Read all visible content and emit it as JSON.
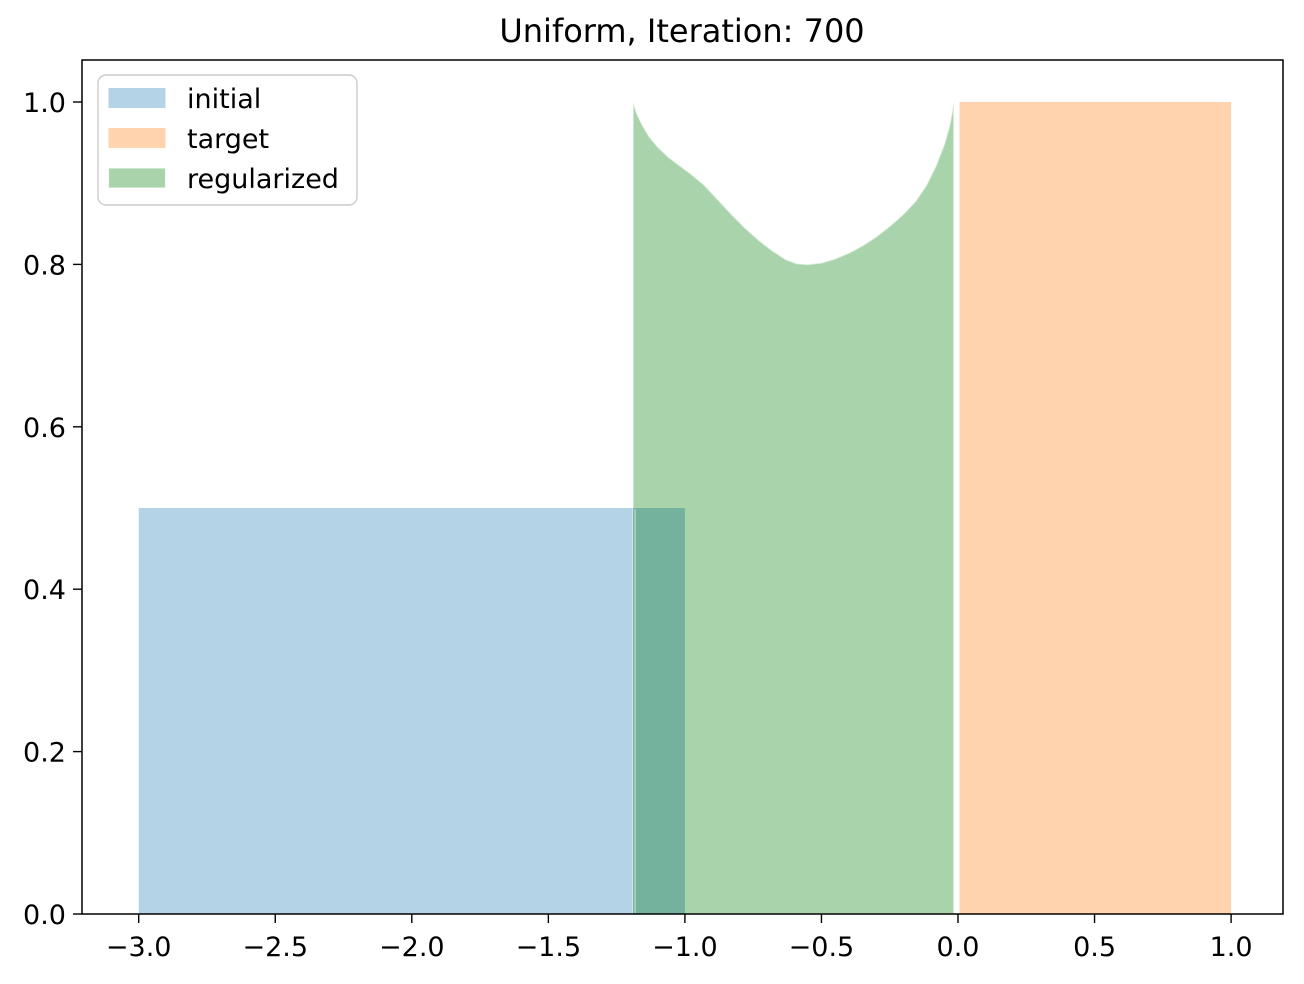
{
  "title": "Uniform, Iteration: 700",
  "legend": {
    "position": "upper left",
    "items": [
      {
        "label": "initial",
        "color": "#b4d3e7"
      },
      {
        "label": "target",
        "color": "#fed3ad"
      },
      {
        "label": "regularized",
        "color": "#a9d3aa"
      }
    ]
  },
  "axes": {
    "x_tick_labels": [
      "−3.0",
      "−2.5",
      "−2.0",
      "−1.5",
      "−1.0",
      "−0.5",
      "0.0",
      "0.5",
      "1.0"
    ],
    "y_tick_labels": [
      "0.0",
      "0.2",
      "0.4",
      "0.6",
      "0.8",
      "1.0"
    ]
  },
  "colors": {
    "initial_fill": "#b4d3e7",
    "target_fill": "#fed3ad",
    "regularized_fill": "#a9d3aa",
    "initial_regularized_overlap": "#75b29d",
    "regularized_edge": "rgba(255,255,255,0.55)",
    "spine": "#000000",
    "legend_border": "#cccccc"
  },
  "chart_data": {
    "type": "area",
    "title": "Uniform, Iteration: 700",
    "xlabel": "",
    "ylabel": "",
    "xlim": [
      -3.2,
      1.2
    ],
    "ylim": [
      0,
      1.054
    ],
    "x_tick_values": [
      -3.0,
      -2.5,
      -2.0,
      -1.5,
      -1.0,
      -0.5,
      0.0,
      0.5,
      1.0
    ],
    "y_tick_values": [
      0.0,
      0.2,
      0.4,
      0.6,
      0.8,
      1.0
    ],
    "grid": false,
    "legend_position": "upper left",
    "series": [
      {
        "name": "initial",
        "shape": "uniform-rectangle",
        "support": [
          -3.0,
          -1.0
        ],
        "density": 0.5,
        "color": "#b4d3e7"
      },
      {
        "name": "target",
        "shape": "uniform-rectangle",
        "support": [
          0.0,
          1.0
        ],
        "density": 1.0,
        "color": "#fed3ad"
      },
      {
        "name": "regularized",
        "shape": "u-curve-area",
        "support": [
          -1.19,
          -0.015
        ],
        "min_density": 0.8,
        "max_density": 1.0,
        "color": "#a9d3aa",
        "points": [
          [
            -1.19,
            1.0
          ],
          [
            -1.175,
            0.985
          ],
          [
            -1.155,
            0.971
          ],
          [
            -1.13,
            0.957
          ],
          [
            -1.1,
            0.945
          ],
          [
            -1.06,
            0.932
          ],
          [
            -1.02,
            0.922
          ],
          [
            -0.98,
            0.912
          ],
          [
            -0.93,
            0.898
          ],
          [
            -0.88,
            0.88
          ],
          [
            -0.83,
            0.862
          ],
          [
            -0.78,
            0.845
          ],
          [
            -0.73,
            0.83
          ],
          [
            -0.68,
            0.817
          ],
          [
            -0.63,
            0.806
          ],
          [
            -0.59,
            0.801
          ],
          [
            -0.55,
            0.8
          ],
          [
            -0.5,
            0.802
          ],
          [
            -0.45,
            0.807
          ],
          [
            -0.4,
            0.814
          ],
          [
            -0.35,
            0.823
          ],
          [
            -0.3,
            0.834
          ],
          [
            -0.25,
            0.847
          ],
          [
            -0.2,
            0.862
          ],
          [
            -0.155,
            0.878
          ],
          [
            -0.115,
            0.898
          ],
          [
            -0.08,
            0.922
          ],
          [
            -0.05,
            0.948
          ],
          [
            -0.03,
            0.972
          ],
          [
            -0.015,
            1.0
          ]
        ]
      }
    ],
    "overlap_region": {
      "between": [
        "initial",
        "regularized"
      ],
      "x_range": [
        -1.19,
        -1.0
      ],
      "y_range": [
        0.0,
        0.5
      ],
      "color": "#75b29d"
    }
  }
}
